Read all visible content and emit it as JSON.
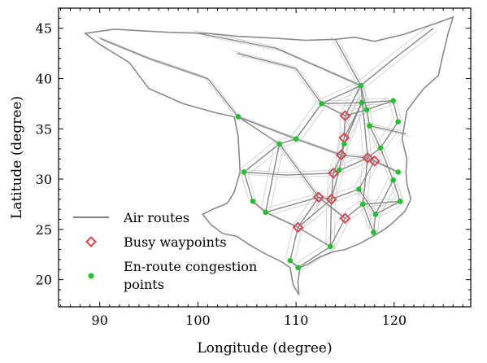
{
  "chart_data": {
    "type": "scatter",
    "title": "",
    "xlabel": "Longitude (degree)",
    "ylabel": "Latitude (degree)",
    "xlim": [
      85.8,
      127.8
    ],
    "ylim": [
      17.3,
      47.0
    ],
    "xticks": [
      90,
      100,
      110,
      120
    ],
    "yticks": [
      20,
      25,
      30,
      35,
      40,
      45
    ],
    "grid": false,
    "legend": {
      "position": "lower-left",
      "entries": [
        {
          "label": "Air routes",
          "marker": "line",
          "color": "#808080"
        },
        {
          "label": "Busy waypoints",
          "marker": "diamond",
          "color": "#d9474f"
        },
        {
          "label": "En-route congestion points",
          "label_lines": [
            "En-route congestion",
            "points"
          ],
          "marker": "dot",
          "color": "#22c12e"
        }
      ]
    },
    "colors": {
      "routes": "#8a8a8a",
      "routes_faint": "#cccccc",
      "busy": "#d9474f",
      "congestion": "#22c12e"
    },
    "series": [
      {
        "name": "Busy waypoints",
        "marker": "diamond",
        "points": [
          {
            "x": 115.0,
            "y": 36.3
          },
          {
            "x": 114.9,
            "y": 34.1
          },
          {
            "x": 114.6,
            "y": 32.4
          },
          {
            "x": 117.3,
            "y": 32.1
          },
          {
            "x": 118.0,
            "y": 31.8
          },
          {
            "x": 113.8,
            "y": 30.6
          },
          {
            "x": 112.3,
            "y": 28.2
          },
          {
            "x": 113.6,
            "y": 28.0
          },
          {
            "x": 115.0,
            "y": 26.1
          },
          {
            "x": 110.2,
            "y": 25.2
          }
        ]
      },
      {
        "name": "En-route congestion points",
        "marker": "dot",
        "points": [
          {
            "x": 116.6,
            "y": 39.3
          },
          {
            "x": 119.9,
            "y": 37.8
          },
          {
            "x": 112.6,
            "y": 37.5
          },
          {
            "x": 116.7,
            "y": 37.6
          },
          {
            "x": 117.2,
            "y": 36.9
          },
          {
            "x": 104.1,
            "y": 36.2
          },
          {
            "x": 120.4,
            "y": 35.7
          },
          {
            "x": 117.5,
            "y": 35.3
          },
          {
            "x": 110.0,
            "y": 34.0
          },
          {
            "x": 108.3,
            "y": 33.5
          },
          {
            "x": 114.9,
            "y": 33.5
          },
          {
            "x": 118.6,
            "y": 33.1
          },
          {
            "x": 104.7,
            "y": 30.7
          },
          {
            "x": 114.4,
            "y": 30.9
          },
          {
            "x": 120.4,
            "y": 30.7
          },
          {
            "x": 119.9,
            "y": 29.9
          },
          {
            "x": 116.4,
            "y": 29.0
          },
          {
            "x": 105.6,
            "y": 27.8
          },
          {
            "x": 106.9,
            "y": 26.7
          },
          {
            "x": 116.8,
            "y": 27.5
          },
          {
            "x": 118.1,
            "y": 26.5
          },
          {
            "x": 120.6,
            "y": 27.8
          },
          {
            "x": 117.9,
            "y": 24.7
          },
          {
            "x": 113.5,
            "y": 23.3
          },
          {
            "x": 109.4,
            "y": 21.9
          },
          {
            "x": 110.2,
            "y": 21.2
          }
        ]
      }
    ]
  }
}
